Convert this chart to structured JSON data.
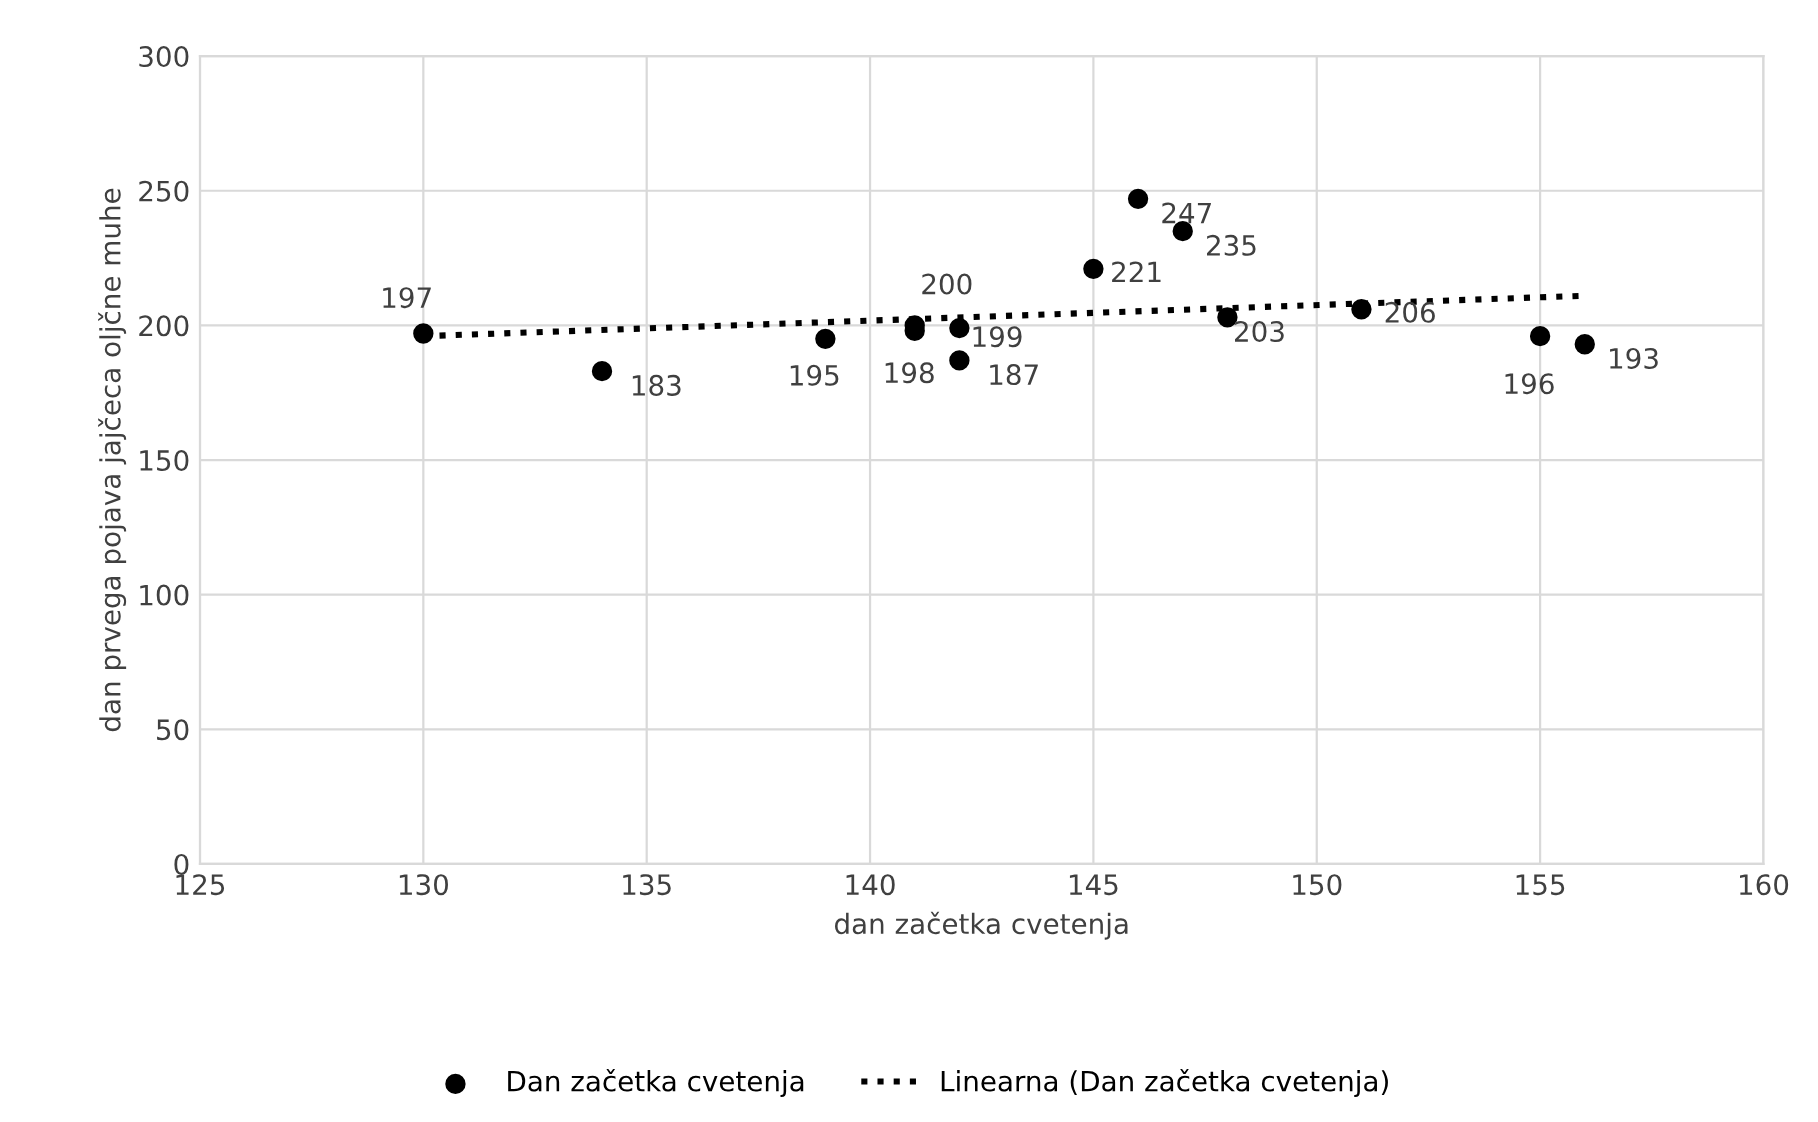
{
  "chart_data": {
    "type": "scatter",
    "xlabel": "dan začetka cvetenja",
    "ylabel": "dan prvega pojava jajčeca oljčne muhe",
    "xlim": [
      125,
      160
    ],
    "xticks": [
      125,
      130,
      135,
      140,
      145,
      150,
      155,
      160
    ],
    "ylim": [
      0,
      300
    ],
    "yticks": [
      0,
      50,
      100,
      150,
      200,
      250,
      300
    ],
    "grid": true,
    "legend": "bottom",
    "series": [
      {
        "name": "Dan začetka cvetenja",
        "color": "#000000",
        "marker": "circle",
        "x": [
          130,
          134,
          139,
          141,
          141,
          142,
          142,
          145,
          146,
          147,
          148,
          151,
          155,
          156
        ],
        "values": [
          197,
          183,
          195,
          200,
          198,
          199,
          187,
          221,
          247,
          235,
          203,
          206,
          196,
          193
        ],
        "value_labels": [
          "197",
          "183",
          "195",
          "200",
          "198",
          "199",
          "187",
          "221",
          "247",
          "235",
          "203",
          "206",
          "196",
          "193"
        ]
      },
      {
        "name": "Linearna (Dan začetka cvetenja)",
        "type": "line",
        "color": "#000000",
        "line_style": "dotted",
        "x": [
          130,
          156
        ],
        "values": [
          196,
          211
        ]
      }
    ]
  }
}
